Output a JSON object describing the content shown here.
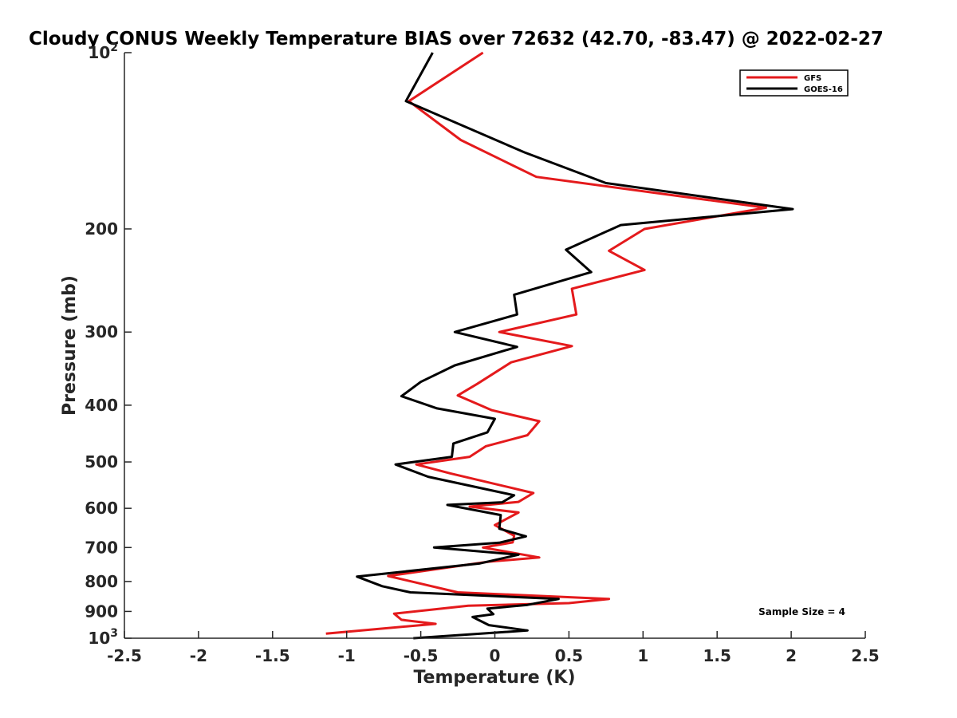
{
  "chart_data": {
    "type": "line",
    "title": "Cloudy CONUS Weekly Temperature BIAS over 72632 (42.70, -83.47) @ 2022-02-27",
    "xlabel": "Temperature (K)",
    "ylabel": "Pressure (mb)",
    "xlim": [
      -2.5,
      2.5
    ],
    "ylim": [
      100,
      1000
    ],
    "y_scale": "log",
    "y_reversed": true,
    "grid": false,
    "legend_position": "top-right",
    "x_ticks": [
      -2.5,
      -2,
      -1.5,
      -1,
      -0.5,
      0,
      0.5,
      1,
      1.5,
      2,
      2.5
    ],
    "x_tick_labels": [
      "-2.5",
      "-2",
      "-1.5",
      "-1",
      "-0.5",
      "0",
      "0.5",
      "1",
      "1.5",
      "2",
      "2.5"
    ],
    "y_ticks": [
      100,
      200,
      300,
      400,
      500,
      600,
      700,
      800,
      900,
      1000
    ],
    "y_tick_labels": [
      {
        "base": "10",
        "exp": "2"
      },
      {
        "base": "200",
        "exp": ""
      },
      {
        "base": "300",
        "exp": ""
      },
      {
        "base": "400",
        "exp": ""
      },
      {
        "base": "500",
        "exp": ""
      },
      {
        "base": "600",
        "exp": ""
      },
      {
        "base": "700",
        "exp": ""
      },
      {
        "base": "800",
        "exp": ""
      },
      {
        "base": "900",
        "exp": ""
      },
      {
        "base": "10",
        "exp": "3"
      }
    ],
    "annotation": "Sample Size = 4",
    "series": [
      {
        "name": "GFS",
        "color": "#e41a1c",
        "points": [
          [
            -0.08,
            100
          ],
          [
            -0.58,
            121
          ],
          [
            -0.23,
            141
          ],
          [
            0.28,
            163
          ],
          [
            1.83,
            184
          ],
          [
            1.01,
            200
          ],
          [
            0.77,
            218
          ],
          [
            1.01,
            235
          ],
          [
            0.52,
            253
          ],
          [
            0.55,
            280
          ],
          [
            0.03,
            300
          ],
          [
            0.52,
            317
          ],
          [
            0.11,
            338
          ],
          [
            -0.12,
            368
          ],
          [
            -0.25,
            385
          ],
          [
            -0.02,
            408
          ],
          [
            0.3,
            426
          ],
          [
            0.22,
            450
          ],
          [
            -0.06,
            470
          ],
          [
            -0.17,
            490
          ],
          [
            -0.53,
            505
          ],
          [
            -0.3,
            523
          ],
          [
            0.26,
            565
          ],
          [
            0.16,
            585
          ],
          [
            -0.17,
            596
          ],
          [
            0.16,
            610
          ],
          [
            0.0,
            641
          ],
          [
            0.13,
            668
          ],
          [
            0.12,
            686
          ],
          [
            -0.08,
            700
          ],
          [
            0.3,
            728
          ],
          [
            -0.04,
            740
          ],
          [
            -0.72,
            783
          ],
          [
            -0.25,
            835
          ],
          [
            0.77,
            857
          ],
          [
            0.5,
            871
          ],
          [
            -0.18,
            880
          ],
          [
            -0.68,
            908
          ],
          [
            -0.63,
            930
          ],
          [
            -0.4,
            945
          ],
          [
            -1.14,
            982
          ]
        ]
      },
      {
        "name": "GOES-16",
        "color": "#000000",
        "points": [
          [
            -0.42,
            100
          ],
          [
            -0.6,
            121
          ],
          [
            0.2,
            148
          ],
          [
            0.75,
            167
          ],
          [
            2.01,
            185
          ],
          [
            0.85,
            197
          ],
          [
            0.48,
            217
          ],
          [
            0.65,
            237
          ],
          [
            0.13,
            259
          ],
          [
            0.15,
            280
          ],
          [
            -0.27,
            300
          ],
          [
            0.15,
            318
          ],
          [
            -0.27,
            342
          ],
          [
            -0.5,
            365
          ],
          [
            -0.63,
            386
          ],
          [
            -0.39,
            405
          ],
          [
            0.0,
            422
          ],
          [
            -0.05,
            445
          ],
          [
            -0.28,
            465
          ],
          [
            -0.29,
            490
          ],
          [
            -0.67,
            505
          ],
          [
            -0.45,
            530
          ],
          [
            0.13,
            570
          ],
          [
            0.05,
            586
          ],
          [
            -0.32,
            592
          ],
          [
            0.04,
            616
          ],
          [
            0.03,
            650
          ],
          [
            0.21,
            670
          ],
          [
            0.03,
            687
          ],
          [
            -0.41,
            700
          ],
          [
            0.16,
            720
          ],
          [
            -0.1,
            745
          ],
          [
            -0.93,
            785
          ],
          [
            -0.76,
            815
          ],
          [
            -0.57,
            835
          ],
          [
            0.43,
            857
          ],
          [
            0.22,
            877
          ],
          [
            -0.05,
            890
          ],
          [
            -0.01,
            910
          ],
          [
            -0.15,
            920
          ],
          [
            -0.04,
            950
          ],
          [
            0.22,
            970
          ],
          [
            -0.55,
            1000
          ]
        ]
      }
    ]
  }
}
